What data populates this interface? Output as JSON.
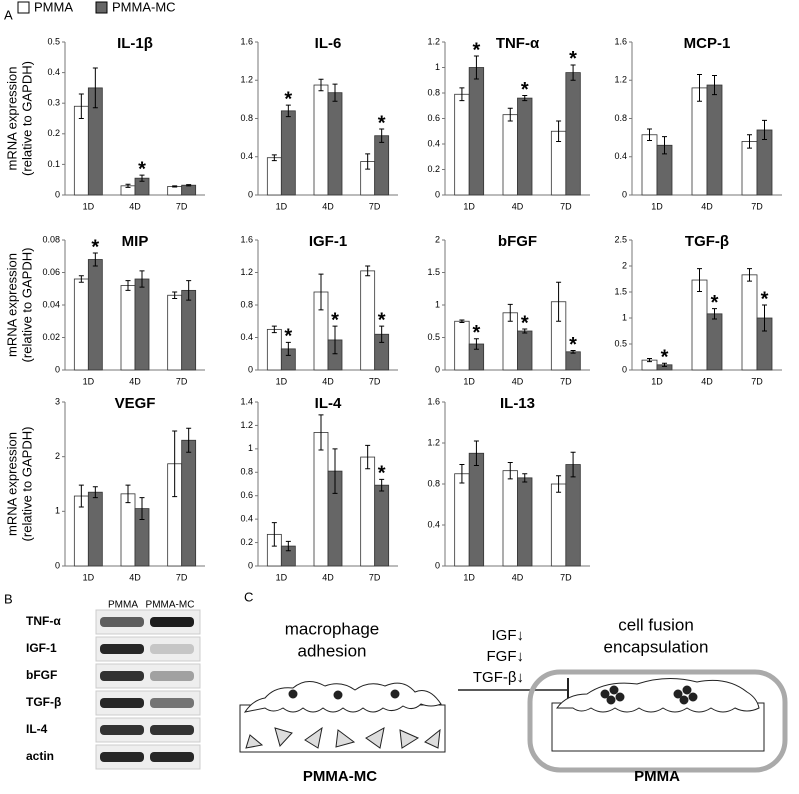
{
  "panels": [
    "A",
    "B",
    "C"
  ],
  "legend": [
    {
      "name": "PMMA",
      "color": "#ffffff"
    },
    {
      "name": "PMMA-MC",
      "color": "#666666"
    }
  ],
  "chart_data": [
    {
      "type": "bar",
      "title": "IL-1β",
      "ylabel": [
        "mRNA expression",
        "(relative to GAPDH)"
      ],
      "categories": [
        "1D",
        "4D",
        "7D"
      ],
      "ylim": [
        0,
        0.5
      ],
      "yticks": [
        0,
        0.1,
        0.2,
        0.3,
        0.4,
        0.5
      ],
      "series": [
        {
          "values": [
            0.29,
            0.03,
            0.028
          ],
          "errors": [
            0.04,
            0.005,
            0.002
          ],
          "annotations": [
            null,
            null,
            null
          ]
        },
        {
          "values": [
            0.35,
            0.055,
            0.032
          ],
          "errors": [
            0.065,
            0.01,
            0.002
          ],
          "annotations": [
            null,
            "*",
            null
          ]
        }
      ]
    },
    {
      "type": "bar",
      "title": "IL-6",
      "categories": [
        "1D",
        "4D",
        "7D"
      ],
      "ylim": [
        0,
        1.6
      ],
      "yticks": [
        0,
        0.4,
        0.8,
        1.2,
        1.6
      ],
      "series": [
        {
          "values": [
            0.39,
            1.15,
            0.35
          ],
          "errors": [
            0.03,
            0.06,
            0.08
          ],
          "annotations": [
            null,
            null,
            null
          ]
        },
        {
          "values": [
            0.88,
            1.07,
            0.62
          ],
          "errors": [
            0.06,
            0.09,
            0.07
          ],
          "annotations": [
            "*",
            null,
            "*"
          ]
        }
      ]
    },
    {
      "type": "bar",
      "title": "TNF-α",
      "categories": [
        "1D",
        "4D",
        "7D"
      ],
      "ylim": [
        0,
        1.2
      ],
      "yticks": [
        0,
        0.2,
        0.4,
        0.6,
        0.8,
        1,
        1.2
      ],
      "series": [
        {
          "values": [
            0.79,
            0.63,
            0.5
          ],
          "errors": [
            0.05,
            0.05,
            0.08
          ],
          "annotations": [
            null,
            null,
            null
          ]
        },
        {
          "values": [
            1.0,
            0.76,
            0.96
          ],
          "errors": [
            0.09,
            0.02,
            0.06
          ],
          "annotations": [
            "*",
            "*",
            "*"
          ]
        }
      ]
    },
    {
      "type": "bar",
      "title": "MCP-1",
      "categories": [
        "1D",
        "4D",
        "7D"
      ],
      "ylim": [
        0,
        1.6
      ],
      "yticks": [
        0,
        0.4,
        0.8,
        1.2,
        1.6
      ],
      "series": [
        {
          "values": [
            0.63,
            1.12,
            0.56
          ],
          "errors": [
            0.06,
            0.14,
            0.07
          ],
          "annotations": [
            null,
            null,
            null
          ]
        },
        {
          "values": [
            0.52,
            1.15,
            0.68
          ],
          "errors": [
            0.09,
            0.1,
            0.1
          ],
          "annotations": [
            null,
            null,
            null
          ]
        }
      ]
    },
    {
      "type": "bar",
      "title": "MIP",
      "ylabel": [
        "mRNA expression",
        "(relative to GAPDH)"
      ],
      "categories": [
        "1D",
        "4D",
        "7D"
      ],
      "ylim": [
        0,
        0.08
      ],
      "yticks": [
        0,
        0.02,
        0.04,
        0.06,
        0.08
      ],
      "series": [
        {
          "values": [
            0.056,
            0.052,
            0.046
          ],
          "errors": [
            0.002,
            0.003,
            0.002
          ],
          "annotations": [
            null,
            null,
            null
          ]
        },
        {
          "values": [
            0.068,
            0.056,
            0.049
          ],
          "errors": [
            0.004,
            0.005,
            0.006
          ],
          "annotations": [
            "*",
            null,
            null
          ]
        }
      ]
    },
    {
      "type": "bar",
      "title": "IGF-1",
      "categories": [
        "1D",
        "4D",
        "7D"
      ],
      "ylim": [
        0,
        1.6
      ],
      "yticks": [
        0,
        0.4,
        0.8,
        1.2,
        1.6
      ],
      "series": [
        {
          "values": [
            0.5,
            0.96,
            1.22
          ],
          "errors": [
            0.04,
            0.22,
            0.06
          ],
          "annotations": [
            null,
            null,
            null
          ]
        },
        {
          "values": [
            0.26,
            0.37,
            0.44
          ],
          "errors": [
            0.08,
            0.17,
            0.1
          ],
          "annotations": [
            "*",
            "*",
            "*"
          ]
        }
      ]
    },
    {
      "type": "bar",
      "title": "bFGF",
      "categories": [
        "1D",
        "4D",
        "7D"
      ],
      "ylim": [
        0,
        2
      ],
      "yticks": [
        0,
        0.5,
        1,
        1.5,
        2
      ],
      "series": [
        {
          "values": [
            0.75,
            0.88,
            1.05
          ],
          "errors": [
            0.02,
            0.13,
            0.3
          ],
          "annotations": [
            null,
            null,
            null
          ]
        },
        {
          "values": [
            0.4,
            0.6,
            0.28
          ],
          "errors": [
            0.08,
            0.03,
            0.02
          ],
          "annotations": [
            "*",
            "*",
            "*"
          ]
        }
      ]
    },
    {
      "type": "bar",
      "title": "TGF-β",
      "categories": [
        "1D",
        "4D",
        "7D"
      ],
      "ylim": [
        0,
        2.5
      ],
      "yticks": [
        0,
        0.5,
        1,
        1.5,
        2,
        2.5
      ],
      "series": [
        {
          "values": [
            0.19,
            1.73,
            1.83
          ],
          "errors": [
            0.03,
            0.22,
            0.12
          ],
          "annotations": [
            null,
            null,
            null
          ]
        },
        {
          "values": [
            0.1,
            1.08,
            1.0
          ],
          "errors": [
            0.03,
            0.1,
            0.25
          ],
          "annotations": [
            "*",
            "*",
            "*"
          ]
        }
      ]
    },
    {
      "type": "bar",
      "title": "VEGF",
      "ylabel": [
        "mRNA expression",
        "(relative to GAPDH)"
      ],
      "categories": [
        "1D",
        "4D",
        "7D"
      ],
      "ylim": [
        0,
        3
      ],
      "yticks": [
        0,
        1,
        2,
        3
      ],
      "series": [
        {
          "values": [
            1.28,
            1.32,
            1.87
          ],
          "errors": [
            0.2,
            0.16,
            0.6
          ],
          "annotations": [
            null,
            null,
            null
          ]
        },
        {
          "values": [
            1.35,
            1.05,
            2.3
          ],
          "errors": [
            0.1,
            0.2,
            0.22
          ],
          "annotations": [
            null,
            null,
            null
          ]
        }
      ]
    },
    {
      "type": "bar",
      "title": "IL-4",
      "categories": [
        "1D",
        "4D",
        "7D"
      ],
      "ylim": [
        0,
        1.4
      ],
      "yticks": [
        0,
        0.2,
        0.4,
        0.6,
        0.8,
        1,
        1.2,
        1.4
      ],
      "series": [
        {
          "values": [
            0.27,
            1.14,
            0.93
          ],
          "errors": [
            0.1,
            0.15,
            0.1
          ],
          "annotations": [
            null,
            null,
            null
          ]
        },
        {
          "values": [
            0.17,
            0.81,
            0.69
          ],
          "errors": [
            0.04,
            0.19,
            0.05
          ],
          "annotations": [
            null,
            null,
            "*"
          ]
        }
      ]
    },
    {
      "type": "bar",
      "title": "IL-13",
      "categories": [
        "1D",
        "4D",
        "7D"
      ],
      "ylim": [
        0,
        1.6
      ],
      "yticks": [
        0,
        0.4,
        0.8,
        1.2,
        1.6
      ],
      "series": [
        {
          "values": [
            0.9,
            0.93,
            0.8
          ],
          "errors": [
            0.09,
            0.08,
            0.08
          ],
          "annotations": [
            null,
            null,
            null
          ]
        },
        {
          "values": [
            1.1,
            0.86,
            0.99
          ],
          "errors": [
            0.12,
            0.04,
            0.12
          ],
          "annotations": [
            null,
            null,
            null
          ]
        }
      ]
    }
  ],
  "blot": {
    "columns": [
      "PMMA",
      "PMMA-MC"
    ],
    "rows": [
      "TNF-α",
      "IGF-1",
      "bFGF",
      "TGF-β",
      "IL-4",
      "actin"
    ]
  },
  "diagram": {
    "left": [
      "macrophage",
      "adhesion"
    ],
    "left_base": "PMMA-MC",
    "middle": [
      "IGF↓",
      "FGF↓",
      "TGF-β↓"
    ],
    "right": [
      "cell fusion",
      "encapsulation"
    ],
    "right_base": "PMMA"
  }
}
